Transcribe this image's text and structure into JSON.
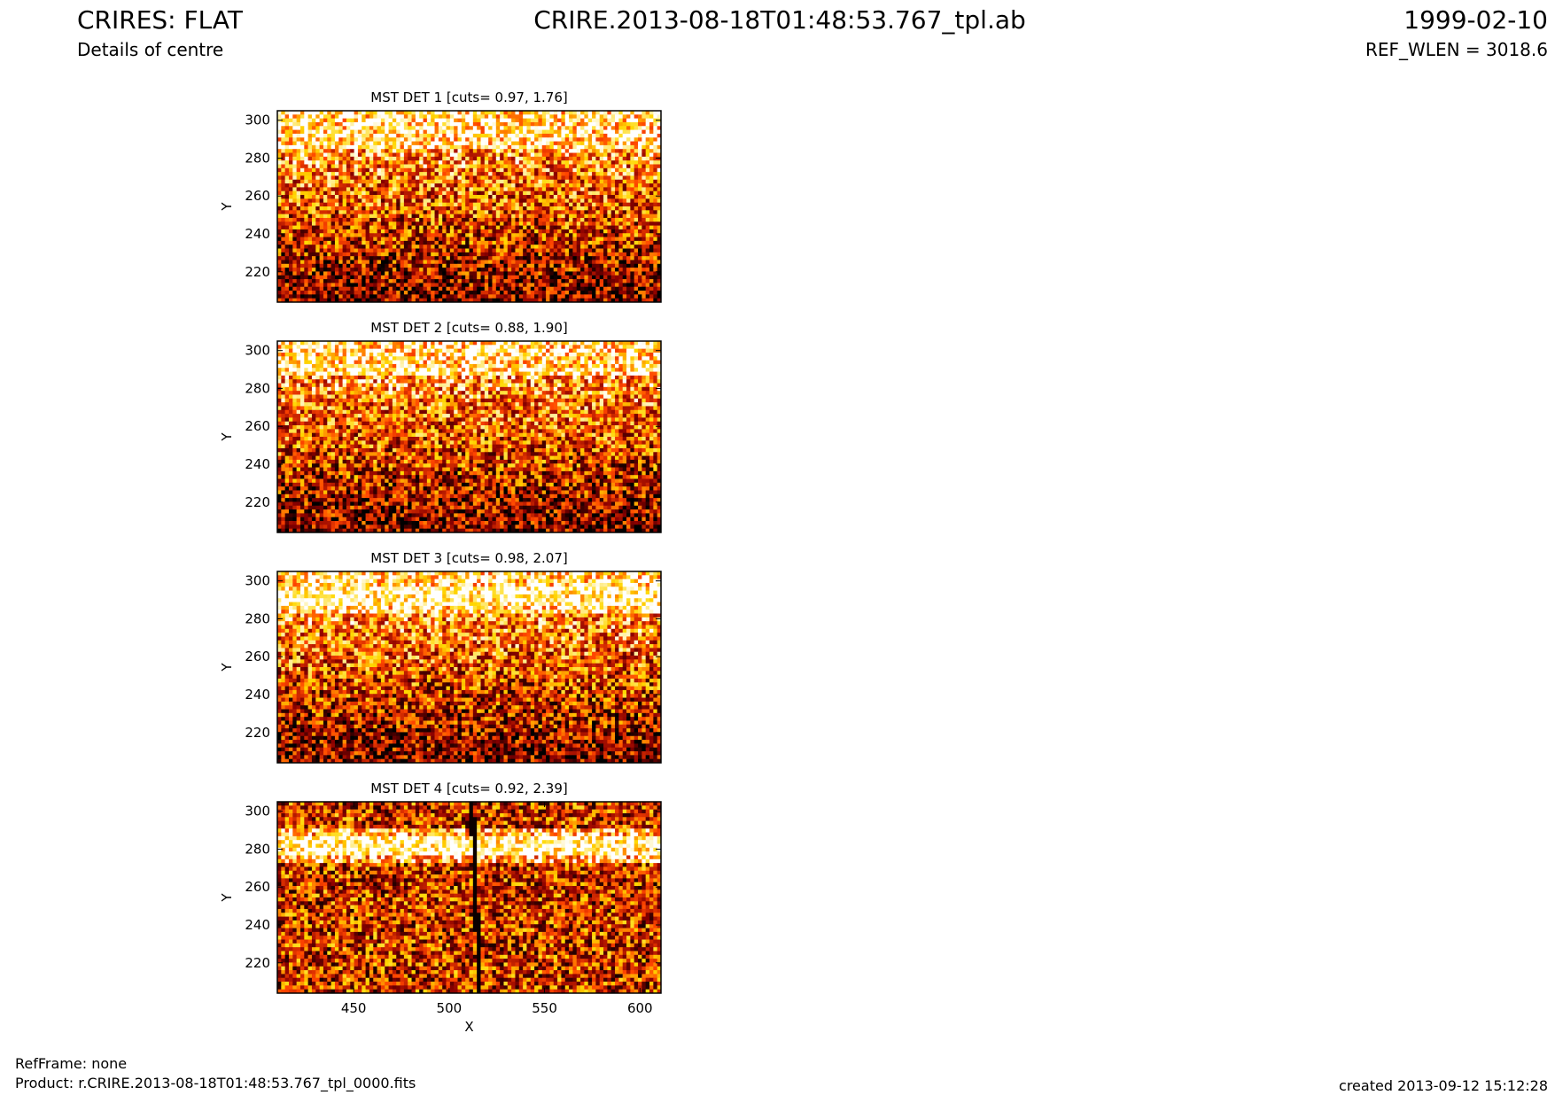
{
  "header": {
    "left_title": "CRIRES: FLAT",
    "left_subtitle": "Details of centre",
    "center_title": "CRIRE.2013-08-18T01:48:53.767_tpl.ab",
    "right_title": "1999-02-10",
    "right_subtitle": "REF_WLEN = 3018.6"
  },
  "footer": {
    "refframe": "RefFrame: none",
    "product": "Product: r.CRIRE.2013-08-18T01:48:53.767_tpl_0000.fits",
    "created": "created 2013-09-12 15:12:28"
  },
  "chart_data": [
    {
      "type": "heatmap",
      "title": "MST DET 1 [cuts= 0.97, 1.76]",
      "ylabel": "Y",
      "xlabel": "",
      "xlim": [
        410,
        611
      ],
      "ylim": [
        204,
        305
      ],
      "yticks": [
        220,
        240,
        260,
        280,
        300
      ],
      "xticks": [],
      "colormap": [
        "#000000",
        "#8b0000",
        "#ff4500",
        "#ffd700",
        "#ffffff"
      ],
      "band_centers": [],
      "description_values": {
        "bright_edge_y": 284
      }
    },
    {
      "type": "heatmap",
      "title": "MST DET 2 [cuts= 0.88, 1.90]",
      "ylabel": "Y",
      "xlabel": "",
      "xlim": [
        410,
        611
      ],
      "ylim": [
        204,
        305
      ],
      "yticks": [
        220,
        240,
        260,
        280,
        300
      ],
      "xticks": [],
      "colormap": [
        "#000000",
        "#8b0000",
        "#ff4500",
        "#ffd700",
        "#ffffff"
      ],
      "band_centers": [],
      "description_values": {
        "bright_edge_y": 286
      }
    },
    {
      "type": "heatmap",
      "title": "MST DET 3 [cuts= 0.98, 2.07]",
      "ylabel": "Y",
      "xlabel": "",
      "xlim": [
        410,
        611
      ],
      "ylim": [
        204,
        305
      ],
      "yticks": [
        220,
        240,
        260,
        280,
        300
      ],
      "xticks": [],
      "colormap": [
        "#000000",
        "#8b0000",
        "#ff4500",
        "#ffd700",
        "#ffffff"
      ],
      "band_centers": [
        292
      ],
      "description_values": {
        "bright_edge_y": 283
      }
    },
    {
      "type": "heatmap",
      "title": "MST DET 4 [cuts= 0.92, 2.39]",
      "ylabel": "Y",
      "xlabel": "X",
      "xlim": [
        410,
        611
      ],
      "ylim": [
        204,
        305
      ],
      "yticks": [
        220,
        240,
        260,
        280,
        300
      ],
      "xticks": [
        450,
        500,
        550,
        600
      ],
      "colormap": [
        "#000000",
        "#8b0000",
        "#ff4500",
        "#ffd700",
        "#ffffff"
      ],
      "band_centers": [
        281
      ],
      "description_values": {
        "bright_edge_y": 0,
        "dark_column_x": 512
      }
    }
  ]
}
